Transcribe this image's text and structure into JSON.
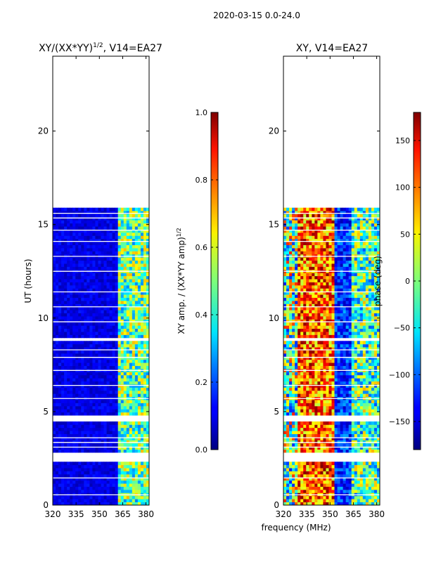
{
  "suptitle": "2020-03-15 0.0-24.0",
  "chart_data": [
    {
      "type": "heatmap",
      "title": "XY/(XX*YY)",
      "title_sup": "1/2",
      "title_suffix": ", V14=EA27",
      "xlabel": "frequency (MHz)",
      "ylabel": "UT (hours)",
      "xlim": [
        320,
        382
      ],
      "ylim": [
        0,
        24
      ],
      "xticks": [
        320,
        335,
        350,
        365,
        380
      ],
      "yticks": [
        0,
        5,
        10,
        15,
        20
      ],
      "data_extent_hours": [
        0,
        15.9
      ],
      "gaps_hours": [
        [
          2.25,
          2.85
        ],
        [
          4.45,
          4.75
        ],
        [
          8.8,
          8.95
        ]
      ],
      "colorbar": {
        "label": "XY amp. / (XX*YY amp)",
        "label_sup": "1/2",
        "range": [
          0.0,
          1.0
        ],
        "ticks": [
          "0.0",
          "0.2",
          "0.4",
          "0.6",
          "0.8",
          "1.0"
        ],
        "tick_values": [
          0.0,
          0.2,
          0.4,
          0.6,
          0.8,
          1.0
        ],
        "colormap": "jet"
      }
    },
    {
      "type": "heatmap",
      "title": "XY, V14=EA27",
      "xlabel": "frequency (MHz)",
      "ylabel": "",
      "xlim": [
        320,
        382
      ],
      "ylim": [
        0,
        24
      ],
      "xticks": [
        320,
        335,
        350,
        365,
        380
      ],
      "yticks": [
        0,
        5,
        10,
        15,
        20
      ],
      "data_extent_hours": [
        0,
        15.9
      ],
      "gaps_hours": [
        [
          2.25,
          2.85
        ],
        [
          4.45,
          4.75
        ],
        [
          8.8,
          8.95
        ]
      ],
      "colorbar": {
        "label": "phase (deg)",
        "range": [
          -180,
          180
        ],
        "ticks": [
          "−150",
          "−100",
          "−50",
          "0",
          "50",
          "100",
          "150"
        ],
        "tick_values": [
          -150,
          -100,
          -50,
          0,
          50,
          100,
          150
        ],
        "colormap": "jet"
      }
    }
  ]
}
